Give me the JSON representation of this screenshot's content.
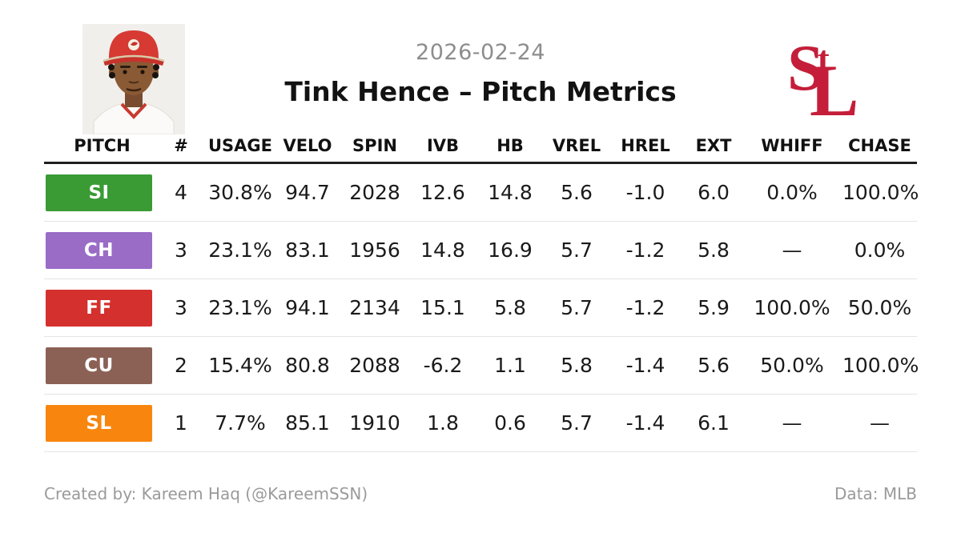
{
  "header": {
    "date": "2026-02-24",
    "title": "Tink Hence – Pitch Metrics",
    "team_logo_name": "st-louis-cardinals-stl-logo",
    "player_photo_name": "tink-hence-headshot"
  },
  "colors": {
    "cardinals_red": "#c41e3a",
    "muted_text": "#9a9a9a",
    "header_rule": "#1f1f1f",
    "row_rule": "#e4e4e4"
  },
  "chart_data": {
    "type": "table",
    "title": "Tink Hence – Pitch Metrics",
    "columns": [
      "PITCH",
      "#",
      "USAGE",
      "VELO",
      "SPIN",
      "IVB",
      "HB",
      "VREL",
      "HREL",
      "EXT",
      "WHIFF",
      "CHASE"
    ],
    "column_keys": [
      "pitch",
      "count",
      "usage",
      "velo",
      "spin",
      "ivb",
      "hb",
      "vrel",
      "hrel",
      "ext",
      "whiff",
      "chase"
    ],
    "rows": [
      {
        "pitch": "SI",
        "color": "#3a9b35",
        "count": "4",
        "usage": "30.8%",
        "velo": "94.7",
        "spin": "2028",
        "ivb": "12.6",
        "hb": "14.8",
        "vrel": "5.6",
        "hrel": "-1.0",
        "ext": "6.0",
        "whiff": "0.0%",
        "chase": "100.0%"
      },
      {
        "pitch": "CH",
        "color": "#9a6cc6",
        "count": "3",
        "usage": "23.1%",
        "velo": "83.1",
        "spin": "1956",
        "ivb": "14.8",
        "hb": "16.9",
        "vrel": "5.7",
        "hrel": "-1.2",
        "ext": "5.8",
        "whiff": "—",
        "chase": "0.0%"
      },
      {
        "pitch": "FF",
        "color": "#d4302e",
        "count": "3",
        "usage": "23.1%",
        "velo": "94.1",
        "spin": "2134",
        "ivb": "15.1",
        "hb": "5.8",
        "vrel": "5.7",
        "hrel": "-1.2",
        "ext": "5.9",
        "whiff": "100.0%",
        "chase": "50.0%"
      },
      {
        "pitch": "CU",
        "color": "#8b6156",
        "count": "2",
        "usage": "15.4%",
        "velo": "80.8",
        "spin": "2088",
        "ivb": "-6.2",
        "hb": "1.1",
        "vrel": "5.8",
        "hrel": "-1.4",
        "ext": "5.6",
        "whiff": "50.0%",
        "chase": "100.0%"
      },
      {
        "pitch": "SL",
        "color": "#f8860e",
        "count": "1",
        "usage": "7.7%",
        "velo": "85.1",
        "spin": "1910",
        "ivb": "1.8",
        "hb": "0.6",
        "vrel": "5.7",
        "hrel": "-1.4",
        "ext": "6.1",
        "whiff": "—",
        "chase": "—"
      }
    ]
  },
  "footer": {
    "credit": "Created by: Kareem Haq (@KareemSSN)",
    "source": "Data: MLB"
  }
}
